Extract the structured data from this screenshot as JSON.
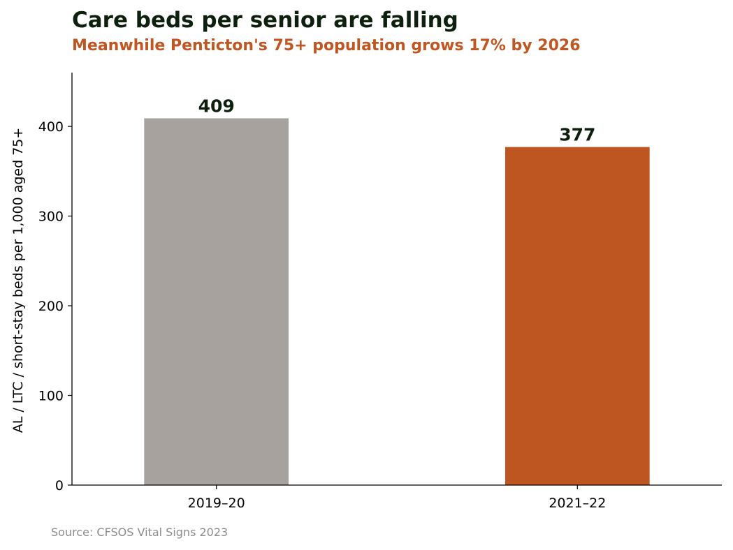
{
  "chart_data": {
    "type": "bar",
    "title": "Care beds per senior are falling",
    "subtitle": "Meanwhile Penticton's 75+ population grows 17% by 2026",
    "categories": [
      "2019–20",
      "2021–22"
    ],
    "values": [
      409,
      377
    ],
    "bar_colors": [
      "#a7a29d",
      "#be5622"
    ],
    "xlabel": "",
    "ylabel": "AL / LTC / short-stay beds per 1,000 aged 75+",
    "ylim": [
      0,
      460
    ],
    "yticks": [
      0,
      100,
      200,
      300,
      400
    ],
    "grid": false,
    "legend": "none",
    "source": "Source: CFSOS Vital Signs 2023",
    "colors": {
      "title": "#0d1f0d",
      "subtitle": "#c05621",
      "source": "#8c8c8c"
    }
  }
}
